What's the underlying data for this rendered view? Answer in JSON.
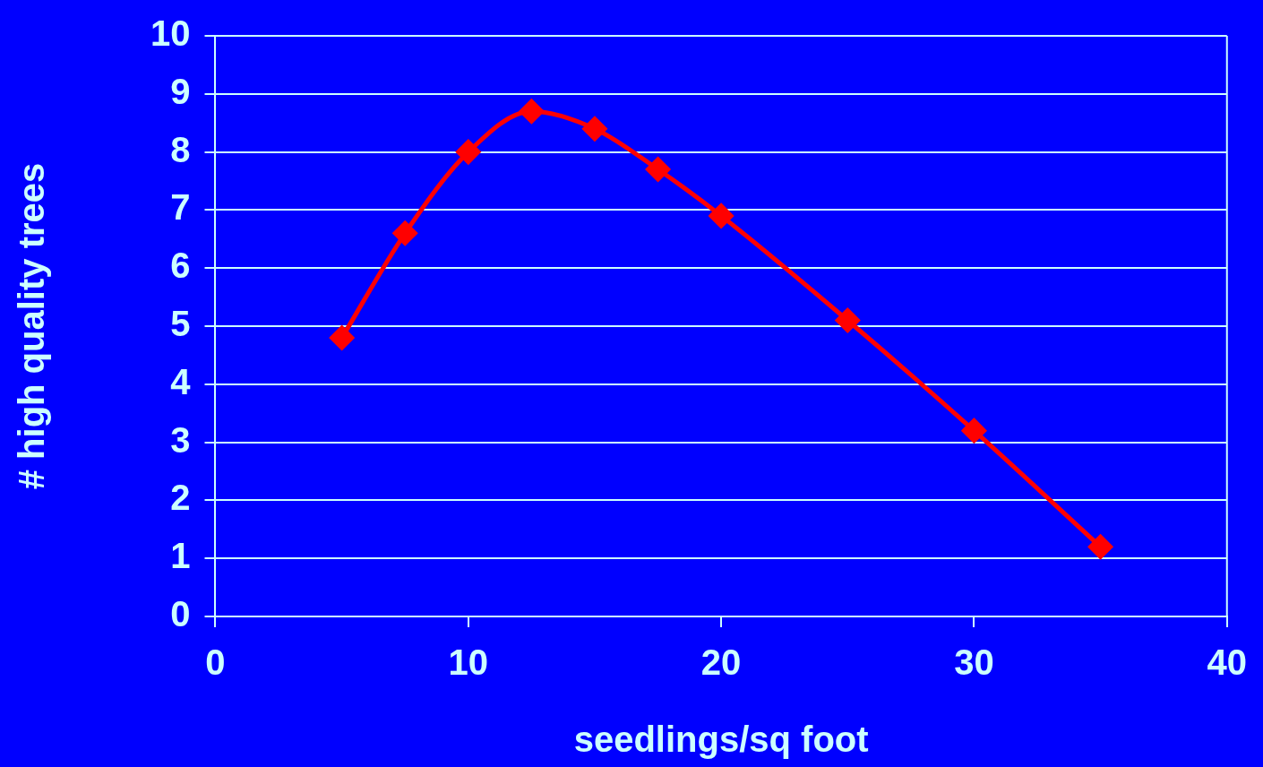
{
  "chart_data": {
    "type": "line",
    "xlabel": "seedlings/sq foot",
    "ylabel": "# high quality trees",
    "x": [
      5,
      7.5,
      10,
      12.5,
      15,
      17.5,
      20,
      25,
      30,
      35
    ],
    "series": [
      {
        "color": "#ff0000",
        "values": [
          4.8,
          6.6,
          8.0,
          8.7,
          8.4,
          7.7,
          6.9,
          5.1,
          3.2,
          1.2
        ]
      }
    ],
    "xlim": [
      0,
      40
    ],
    "xticks": [
      0,
      10,
      20,
      30,
      40
    ],
    "ylim": [
      0,
      10
    ],
    "yticks": [
      0,
      1,
      2,
      3,
      4,
      5,
      6,
      7,
      8,
      9,
      10
    ],
    "grid": "y",
    "legend": false,
    "marker": "diamond",
    "line_style": "solid"
  }
}
